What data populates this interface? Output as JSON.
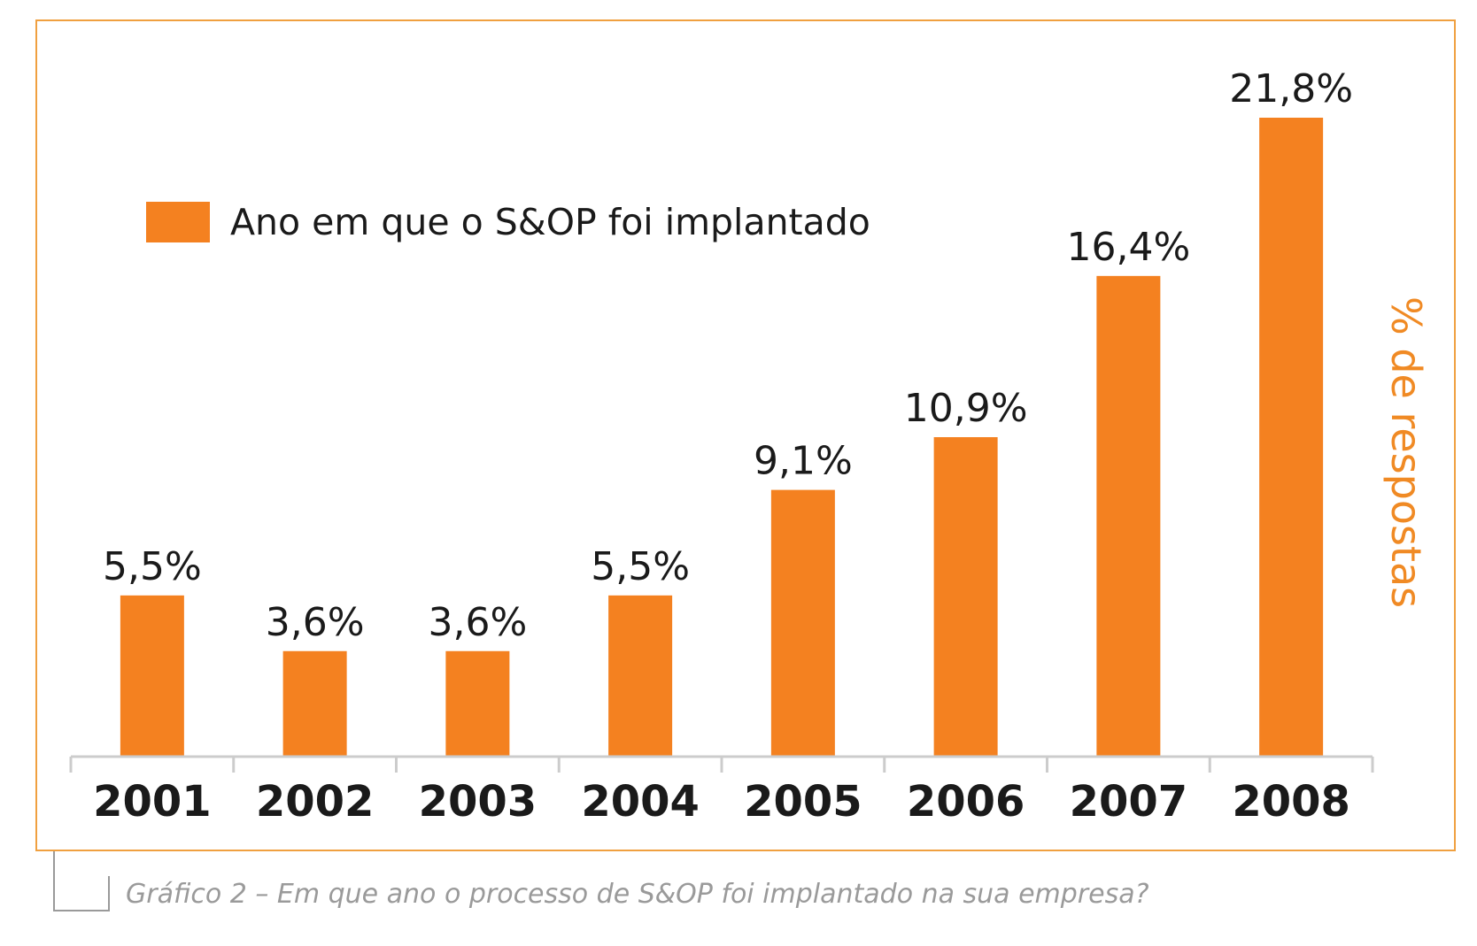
{
  "chart_data": {
    "type": "bar",
    "categories": [
      "2001",
      "2002",
      "2003",
      "2004",
      "2005",
      "2006",
      "2007",
      "2008"
    ],
    "values": [
      5.5,
      3.6,
      3.6,
      5.5,
      9.1,
      10.9,
      16.4,
      21.8
    ],
    "value_labels": [
      "5,5%",
      "3,6%",
      "3,6%",
      "5,5%",
      "9,1%",
      "10,9%",
      "16,4%",
      "21,8%"
    ],
    "legend": "Ano em que o S&OP foi implantado",
    "ylabel": "% de respostas",
    "ylim": [
      0,
      25
    ],
    "bar_color": "#f48120",
    "legend_position": "top-left"
  },
  "caption": "Gráfico 2 – Em que ano o processo de S&OP foi implantado na sua empresa?"
}
